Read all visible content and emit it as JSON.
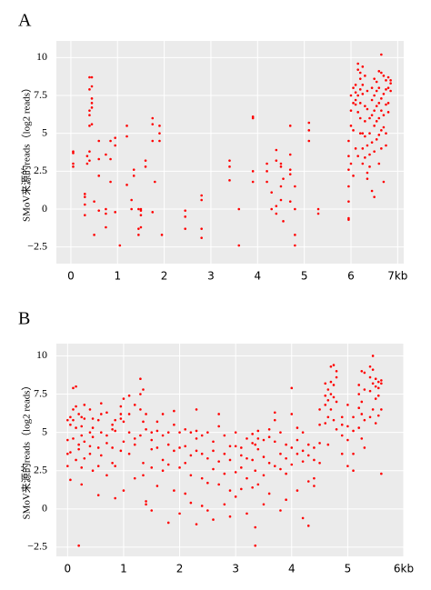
{
  "chart_data": [
    {
      "type": "scatter",
      "title": "A",
      "ylabel": "SMoV来源的reads（log2 reads）",
      "color": "#ff0000",
      "grid": true,
      "xlim": [
        -0.31,
        7.13
      ],
      "ylim": [
        -3.6,
        11.1
      ],
      "xticks": [
        0,
        1,
        2,
        3,
        4,
        5,
        6,
        {
          "value": 7,
          "label": "7kb"
        }
      ],
      "yticks": [
        {
          "value": -2.5,
          "label": "−2.5"
        },
        0,
        2.5,
        5,
        7.5,
        10
      ],
      "x": [
        0.05,
        0.05,
        0.05,
        0.05,
        0.3,
        0.3,
        0.3,
        0.3,
        0.35,
        0.35,
        0.4,
        0.4,
        0.4,
        0.4,
        0.4,
        0.4,
        0.4,
        0.45,
        0.45,
        0.45,
        0.45,
        0.45,
        0.45,
        0.5,
        0.5,
        0.6,
        0.6,
        0.6,
        0.6,
        0.75,
        0.75,
        0.75,
        0.75,
        0.85,
        0.85,
        0.85,
        0.95,
        0.95,
        0.95,
        1.05,
        1.2,
        1.2,
        1.2,
        1.3,
        1.3,
        1.35,
        1.35,
        1.45,
        1.45,
        1.45,
        1.5,
        1.5,
        1.5,
        1.5,
        1.6,
        1.6,
        1.75,
        1.75,
        1.75,
        1.75,
        1.8,
        1.9,
        1.9,
        1.9,
        1.95,
        2.45,
        2.45,
        2.45,
        2.8,
        2.8,
        2.8,
        2.8,
        3.4,
        3.4,
        3.4,
        3.6,
        3.6,
        3.9,
        3.9,
        3.9,
        3.9,
        4.2,
        4.2,
        4.2,
        4.3,
        4.3,
        4.4,
        4.4,
        4.4,
        4.4,
        4.5,
        4.5,
        4.5,
        4.5,
        4.55,
        4.55,
        4.7,
        4.7,
        4.7,
        4.7,
        4.7,
        4.8,
        4.8,
        4.8,
        4.8,
        5.1,
        5.1,
        5.1,
        5.3,
        5.3,
        5.95,
        5.95,
        5.95,
        5.95,
        5.95,
        5.95,
        5.95,
        6.0,
        6.0,
        6.0,
        6.0,
        6.05,
        6.05,
        6.05,
        6.05,
        6.1,
        6.1,
        6.1,
        6.1,
        6.1,
        6.15,
        6.15,
        6.15,
        6.15,
        6.15,
        6.2,
        6.2,
        6.2,
        6.2,
        6.2,
        6.2,
        6.25,
        6.25,
        6.25,
        6.25,
        6.25,
        6.25,
        6.3,
        6.3,
        6.3,
        6.3,
        6.3,
        6.35,
        6.35,
        6.35,
        6.35,
        6.35,
        6.4,
        6.4,
        6.4,
        6.4,
        6.45,
        6.45,
        6.45,
        6.45,
        6.45,
        6.5,
        6.5,
        6.5,
        6.5,
        6.5,
        6.5,
        6.55,
        6.55,
        6.55,
        6.55,
        6.55,
        6.6,
        6.6,
        6.6,
        6.6,
        6.6,
        6.6,
        6.65,
        6.65,
        6.65,
        6.65,
        6.65,
        6.65,
        6.7,
        6.7,
        6.7,
        6.7,
        6.7,
        6.75,
        6.75,
        6.75,
        6.75,
        6.75,
        6.8,
        6.8,
        6.8,
        6.8,
        6.85,
        6.85,
        6.85
      ],
      "values": [
        3.8,
        3.7,
        3.0,
        2.8,
        1.0,
        0.8,
        -0.4,
        0.3,
        3.0,
        3.5,
        6.2,
        8.7,
        7.9,
        6.5,
        5.5,
        3.8,
        3.2,
        8.7,
        8.1,
        7.3,
        7.0,
        6.7,
        5.6,
        -1.7,
        0.5,
        4.5,
        3.3,
        2.2,
        -0.1,
        3.6,
        0.0,
        -0.3,
        -1.2,
        4.5,
        3.3,
        1.8,
        4.7,
        4.2,
        -0.2,
        -2.4,
        4.8,
        5.5,
        1.6,
        0.0,
        0.6,
        2.6,
        2.2,
        0.0,
        -1.3,
        -1.7,
        0.0,
        -0.4,
        -1.2,
        -0.1,
        3.2,
        2.8,
        6.0,
        5.6,
        4.5,
        -0.2,
        1.8,
        5.5,
        5.0,
        4.5,
        -1.7,
        -0.1,
        -0.5,
        -1.3,
        0.6,
        0.9,
        -1.3,
        -1.9,
        3.2,
        2.8,
        1.9,
        0.0,
        -2.4,
        6.1,
        6.0,
        2.5,
        1.8,
        3.0,
        2.5,
        1.8,
        1.1,
        0.0,
        3.9,
        3.2,
        0.2,
        -0.3,
        3.0,
        2.8,
        1.5,
        0.6,
        2.0,
        -0.8,
        5.5,
        2.6,
        2.3,
        3.6,
        0.5,
        1.5,
        0.0,
        -1.7,
        -2.4,
        5.7,
        5.2,
        4.5,
        0.0,
        -0.3,
        -0.6,
        0.5,
        1.5,
        2.6,
        3.5,
        4.5,
        -0.7,
        7.5,
        6.5,
        5.5,
        3.0,
        8.0,
        7.0,
        5.2,
        2.2,
        8.2,
        7.7,
        7.2,
        6.9,
        4.0,
        9.6,
        9.2,
        7.5,
        6.4,
        3.5,
        9.0,
        8.6,
        7.9,
        7.0,
        6.0,
        5.0,
        9.4,
        8.2,
        7.6,
        5.0,
        4.0,
        3.0,
        8.8,
        6.8,
        5.8,
        4.8,
        3.4,
        7.8,
        6.6,
        4.2,
        2.4,
        2.0,
        6.0,
        5.0,
        3.6,
        2.8,
        8.0,
        7.2,
        6.2,
        4.4,
        1.2,
        8.6,
        7.5,
        6.5,
        5.5,
        3.8,
        0.8,
        8.4,
        7.8,
        6.8,
        5.8,
        4.6,
        9.1,
        8.0,
        7.0,
        6.0,
        4.9,
        3.0,
        10.2,
        9.0,
        7.3,
        6.5,
        5.2,
        4.0,
        8.8,
        7.6,
        6.2,
        5.4,
        1.8,
        8.5,
        7.9,
        6.9,
        5.0,
        4.2,
        8.7,
        8.0,
        7.0,
        6.4,
        8.5,
        8.3,
        7.8
      ]
    },
    {
      "type": "scatter",
      "title": "B",
      "ylabel": "SMoV来源的reads（log2 reads）",
      "color": "#ff0000",
      "grid": true,
      "xlim": [
        -0.2,
        6.0
      ],
      "ylim": [
        -3.1,
        10.8
      ],
      "xticks": [
        0,
        1,
        2,
        3,
        4,
        5,
        {
          "value": 6,
          "label": "6kb"
        }
      ],
      "yticks": [
        {
          "value": -2.5,
          "label": "−2.5"
        },
        0,
        2.5,
        5,
        7.5,
        10
      ],
      "x": [
        0.0,
        0.0,
        0.0,
        0.0,
        0.05,
        0.05,
        0.05,
        0.05,
        0.1,
        0.1,
        0.1,
        0.1,
        0.15,
        0.15,
        0.15,
        0.15,
        0.2,
        0.2,
        0.2,
        0.2,
        0.25,
        0.25,
        0.25,
        0.25,
        0.25,
        0.3,
        0.3,
        0.3,
        0.3,
        0.4,
        0.4,
        0.4,
        0.4,
        0.45,
        0.45,
        0.45,
        0.45,
        0.55,
        0.55,
        0.55,
        0.55,
        0.6,
        0.6,
        0.6,
        0.6,
        0.7,
        0.7,
        0.7,
        0.7,
        0.8,
        0.8,
        0.8,
        0.8,
        0.85,
        0.85,
        0.85,
        0.85,
        0.95,
        0.95,
        0.95,
        0.95,
        1.0,
        1.0,
        1.0,
        1.0,
        1.1,
        1.1,
        1.1,
        1.1,
        1.2,
        1.2,
        1.2,
        1.2,
        1.3,
        1.3,
        1.3,
        1.3,
        1.35,
        1.35,
        1.35,
        1.35,
        1.4,
        1.4,
        1.4,
        1.4,
        1.5,
        1.5,
        1.5,
        1.5,
        1.5,
        1.6,
        1.6,
        1.6,
        1.6,
        1.7,
        1.7,
        1.7,
        1.7,
        1.8,
        1.8,
        1.8,
        1.8,
        1.9,
        1.9,
        1.9,
        1.9,
        2.0,
        2.0,
        2.0,
        2.0,
        2.1,
        2.1,
        2.1,
        2.1,
        2.2,
        2.2,
        2.2,
        2.2,
        2.3,
        2.3,
        2.3,
        2.3,
        2.3,
        2.4,
        2.4,
        2.4,
        2.4,
        2.5,
        2.5,
        2.5,
        2.5,
        2.6,
        2.6,
        2.6,
        2.6,
        2.7,
        2.7,
        2.7,
        2.7,
        2.8,
        2.8,
        2.8,
        2.8,
        2.9,
        2.9,
        2.9,
        2.9,
        3.0,
        3.0,
        3.0,
        3.0,
        3.1,
        3.1,
        3.1,
        3.1,
        3.2,
        3.2,
        3.2,
        3.2,
        3.3,
        3.3,
        3.3,
        3.3,
        3.35,
        3.35,
        3.35,
        3.35,
        3.4,
        3.4,
        3.4,
        3.4,
        3.5,
        3.5,
        3.5,
        3.5,
        3.6,
        3.6,
        3.6,
        3.6,
        3.7,
        3.7,
        3.7,
        3.7,
        3.8,
        3.8,
        3.8,
        3.8,
        3.9,
        3.9,
        3.9,
        3.9,
        4.0,
        4.0,
        4.0,
        4.0,
        4.1,
        4.1,
        4.1,
        4.1,
        4.2,
        4.2,
        4.2,
        4.2,
        4.3,
        4.3,
        4.3,
        4.3,
        4.4,
        4.4,
        4.4,
        4.4,
        4.5,
        4.5,
        4.5,
        4.5,
        4.6,
        4.6,
        4.6,
        4.6,
        4.65,
        4.65,
        4.65,
        4.65,
        4.7,
        4.7,
        4.7,
        4.7,
        4.75,
        4.75,
        4.75,
        4.75,
        4.8,
        4.8,
        4.8,
        4.8,
        4.9,
        4.9,
        4.9,
        4.9,
        5.0,
        5.0,
        5.0,
        5.0,
        5.1,
        5.1,
        5.1,
        5.1,
        5.2,
        5.2,
        5.2,
        5.2,
        5.25,
        5.25,
        5.25,
        5.25,
        5.3,
        5.3,
        5.3,
        5.3,
        5.4,
        5.4,
        5.4,
        5.4,
        5.45,
        5.45,
        5.45,
        5.45,
        5.5,
        5.5,
        5.5,
        5.5,
        5.55,
        5.55,
        5.55,
        5.55,
        5.6,
        5.6,
        5.6,
        5.6
      ],
      "values": [
        5.8,
        4.5,
        3.6,
        2.8,
        6.0,
        5.5,
        3.7,
        1.9,
        7.9,
        6.5,
        5.8,
        4.6,
        8.0,
        6.7,
        5.3,
        3.2,
        6.2,
        4.2,
        3.9,
        -2.4,
        6.0,
        5.4,
        4.8,
        2.7,
        1.6,
        6.8,
        5.9,
        4.4,
        3.3,
        6.5,
        5.0,
        4.1,
        3.6,
        5.9,
        5.3,
        4.7,
        2.5,
        5.8,
        4.0,
        2.8,
        0.9,
        6.9,
        6.2,
        5.0,
        3.5,
        6.3,
        4.8,
        4.3,
        2.2,
        5.5,
        5.2,
        4.0,
        3.0,
        5.8,
        5.1,
        2.8,
        0.7,
        6.7,
        6.2,
        5.9,
        3.8,
        7.2,
        5.7,
        4.4,
        1.2,
        7.4,
        6.2,
        5.0,
        3.6,
        6.8,
        4.6,
        4.2,
        2.0,
        8.5,
        7.5,
        6.5,
        4.8,
        7.8,
        5.7,
        3.0,
        2.2,
        6.2,
        5.2,
        0.5,
        0.3,
        5.0,
        4.5,
        3.9,
        2.7,
        -0.1,
        5.7,
        5.1,
        4.0,
        1.5,
        6.2,
        4.8,
        3.2,
        2.5,
        5.0,
        4.2,
        2.9,
        -0.9,
        6.4,
        5.5,
        3.8,
        1.2,
        5.0,
        4.0,
        2.7,
        -0.3,
        5.2,
        4.1,
        3.0,
        1.0,
        5.0,
        3.5,
        2.2,
        0.4,
        6.5,
        5.1,
        4.6,
        3.8,
        -1.0,
        4.8,
        3.6,
        2.0,
        0.2,
        5.0,
        3.3,
        1.7,
        -0.1,
        4.4,
        3.8,
        2.6,
        -0.7,
        6.2,
        5.4,
        3.1,
        1.6,
        4.8,
        3.6,
        2.3,
        0.3,
        4.1,
        3.2,
        1.2,
        -0.5,
        5.0,
        4.1,
        2.4,
        0.8,
        4.0,
        3.5,
        2.7,
        1.3,
        4.6,
        3.3,
        2.0,
        -0.3,
        4.9,
        4.3,
        3.2,
        1.4,
        4.2,
        2.5,
        -1.2,
        -2.4,
        5.1,
        4.6,
        3.9,
        1.6,
        4.5,
        3.4,
        2.2,
        0.3,
        5.2,
        4.7,
        3.0,
        1.0,
        6.3,
        5.8,
        4.4,
        2.8,
        5.0,
        3.6,
        2.6,
        -0.1,
        4.2,
        3.3,
        2.3,
        0.6,
        7.9,
        6.2,
        4.0,
        2.9,
        5.3,
        4.5,
        3.6,
        1.2,
        5.0,
        3.8,
        3.1,
        -0.6,
        4.2,
        3.5,
        1.8,
        -1.1,
        4.0,
        3.2,
        2.0,
        1.5,
        6.5,
        5.5,
        4.3,
        3.0,
        8.2,
        7.4,
        6.8,
        5.6,
        7.8,
        7.1,
        6.0,
        4.2,
        9.3,
        8.3,
        7.5,
        6.5,
        9.4,
        8.1,
        7.3,
        5.8,
        9.0,
        8.6,
        7.0,
        5.2,
        6.0,
        5.5,
        4.8,
        3.6,
        6.8,
        5.4,
        4.5,
        2.8,
        6.0,
        5.1,
        3.6,
        2.5,
        8.1,
        7.5,
        6.6,
        5.3,
        9.0,
        7.0,
        6.2,
        4.6,
        8.9,
        7.8,
        5.8,
        4.0,
        9.3,
        8.6,
        7.7,
        6.0,
        10.0,
        9.1,
        8.2,
        6.5,
        8.5,
        8.0,
        7.2,
        5.6,
        8.3,
        7.9,
        7.4,
        6.1,
        8.4,
        8.2,
        6.5,
        2.3
      ]
    }
  ]
}
